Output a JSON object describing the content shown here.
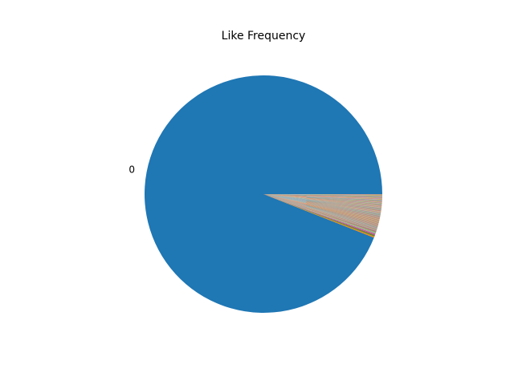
{
  "chart_data": {
    "type": "pie",
    "title": "Like Frequency",
    "start_angle_deg": 0,
    "counterclock": false,
    "dominant": {
      "label": "0",
      "value": 0.9418,
      "color": "#1f77b4"
    },
    "minor_labels_visible": false,
    "minor_palette": [
      "#ff7f0e",
      "#2ca02c",
      "#d62728",
      "#9467bd",
      "#8c564b",
      "#e377c2",
      "#7f7f7f",
      "#bcbd22",
      "#17becf"
    ],
    "minor_values": [
      0.0016,
      0.0012,
      0.0009,
      0.0008,
      0.0007,
      0.0006,
      0.0006,
      0.0005,
      0.0005,
      0.0005,
      0.0004,
      0.0004,
      0.0004,
      0.0004,
      0.0004,
      0.0003,
      0.0003,
      0.0003,
      0.0003,
      0.0003,
      0.0003,
      0.0003,
      0.0003,
      0.0003,
      0.0002,
      0.0002,
      0.0002,
      0.0002,
      0.0002,
      0.0002,
      0.0002,
      0.0002,
      0.0002,
      0.0002,
      0.0002,
      0.0002,
      0.0002,
      0.0002,
      0.0002,
      0.0002,
      0.0002,
      0.0002,
      0.0002,
      0.0002,
      0.0002,
      0.0002,
      0.0002,
      0.0002,
      0.0002,
      0.0002,
      0.0002,
      0.0002,
      0.0002,
      0.0002,
      0.0002,
      0.0002,
      0.0002,
      0.0002,
      0.0002,
      0.0002,
      0.0002,
      0.0002,
      0.0002,
      0.0002,
      0.0002,
      0.0002,
      0.0002,
      0.0002,
      0.0002,
      0.0002,
      0.0002,
      0.0002,
      0.0002,
      0.0002,
      0.0002,
      0.0002,
      0.0002,
      0.0002,
      0.0002,
      0.0002,
      0.0002,
      0.0002,
      0.0002,
      0.0002,
      0.0002,
      0.0002,
      0.0002,
      0.0002,
      0.0002,
      0.0002,
      0.0002,
      0.0002,
      0.0002,
      0.0002,
      0.0002,
      0.0002,
      0.0002,
      0.0002,
      0.0002,
      0.0002,
      0.0002,
      0.0002,
      0.0002,
      0.0002,
      0.0002,
      0.0002,
      0.0002,
      0.0002,
      0.0002,
      0.0002,
      0.0002,
      0.0002,
      0.0002,
      0.0002,
      0.0002,
      0.0002,
      0.0002,
      0.0002,
      0.0002,
      0.0002,
      0.0002,
      0.0002,
      0.0002,
      0.0002,
      0.0002,
      0.0002,
      0.0002,
      0.0002,
      0.0002,
      0.0002,
      0.0002,
      0.0002,
      0.0002,
      0.0002,
      0.0002,
      0.0002,
      0.0002,
      0.0002,
      0.0002,
      0.0002,
      0.0002,
      0.0002,
      0.0002,
      0.0002,
      0.0002,
      0.0002,
      0.0002,
      0.0002,
      0.0002,
      0.0002,
      0.0002,
      0.0002,
      0.0002,
      0.0002,
      0.0002,
      0.0002,
      0.0002,
      0.0002,
      0.0002,
      0.0002,
      0.0002,
      0.0002,
      0.0002,
      0.0002,
      0.0002,
      0.0002,
      0.0002,
      0.0002,
      0.0002,
      0.0002,
      0.0002,
      0.0002,
      0.0002,
      0.0002,
      0.0002,
      0.0002,
      0.0002,
      0.0002,
      0.0002,
      0.0002,
      0.0002,
      0.0002,
      0.0002,
      0.0002,
      0.0002,
      0.0002,
      0.0002,
      0.0002,
      0.0002,
      0.0002,
      0.0002,
      0.0002,
      0.0002,
      0.0002,
      0.0002,
      0.0002,
      0.0002,
      0.0002,
      0.0002,
      0.0002,
      0.0002,
      0.0002,
      0.0002,
      0.0002,
      0.0002,
      0.0002,
      0.0002,
      0.0002,
      0.0002,
      0.0002,
      0.0002,
      0.0002,
      0.0002,
      0.0002,
      0.0002,
      0.0002,
      0.0002,
      0.0002,
      0.0002,
      0.0002,
      0.0002,
      0.0002,
      0.0002,
      0.0002,
      0.0002,
      0.0002,
      0.0002,
      0.0002,
      0.0002,
      0.0002,
      0.0002,
      0.0002,
      0.0002,
      0.0002,
      0.0002,
      0.0002,
      0.0002,
      0.0002,
      0.0002,
      0.0002,
      0.0002,
      0.0002,
      0.0002,
      0.0002,
      0.0002,
      0.0002,
      0.0002,
      0.0002,
      0.0002,
      0.0002,
      0.0002,
      0.0002,
      0.0002,
      0.0002,
      0.0002,
      0.0002,
      0.0002,
      0.0002,
      0.0002,
      0.0002
    ]
  }
}
